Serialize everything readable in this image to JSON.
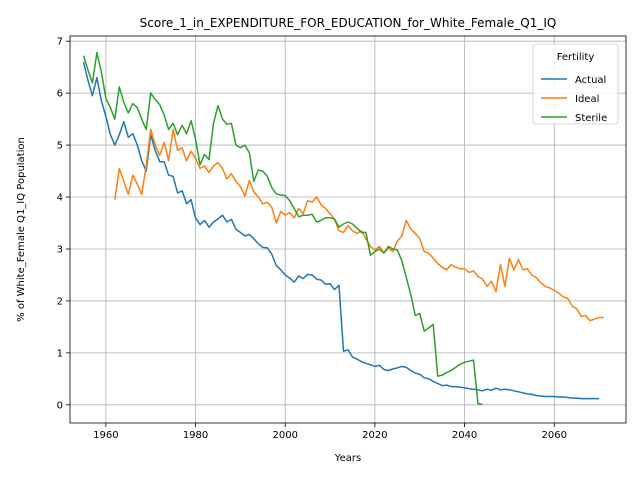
{
  "chart_data": {
    "type": "line",
    "title": "Score_1_in_EXPENDITURE_FOR_EDUCATION_for_White_Female_Q1_IQ",
    "xlabel": "Years",
    "ylabel": "% of White_Female Q1_IQ Population",
    "xlim": [
      1952,
      2076
    ],
    "ylim": [
      -0.35,
      7.1
    ],
    "xticks": [
      1960,
      1980,
      2000,
      2020,
      2040,
      2060
    ],
    "yticks": [
      0,
      1,
      2,
      3,
      4,
      5,
      6,
      7
    ],
    "grid": true,
    "legend": {
      "title": "Fertility",
      "placement": "top-right"
    },
    "series": [
      {
        "name": "Actual",
        "color": "#1f77b4",
        "points": [
          [
            1955,
            6.6
          ],
          [
            1956,
            6.25
          ],
          [
            1957,
            5.95
          ],
          [
            1958,
            6.3
          ],
          [
            1959,
            5.85
          ],
          [
            1960,
            5.55
          ],
          [
            1961,
            5.2
          ],
          [
            1962,
            5.0
          ],
          [
            1963,
            5.2
          ],
          [
            1964,
            5.45
          ],
          [
            1965,
            5.15
          ],
          [
            1966,
            5.22
          ],
          [
            1967,
            5.0
          ],
          [
            1968,
            4.7
          ],
          [
            1969,
            4.5
          ],
          [
            1970,
            5.2
          ],
          [
            1971,
            4.9
          ],
          [
            1972,
            4.68
          ],
          [
            1973,
            4.68
          ],
          [
            1974,
            4.42
          ],
          [
            1975,
            4.4
          ],
          [
            1976,
            4.08
          ],
          [
            1977,
            4.12
          ],
          [
            1978,
            3.87
          ],
          [
            1979,
            3.95
          ],
          [
            1980,
            3.6
          ],
          [
            1981,
            3.47
          ],
          [
            1982,
            3.55
          ],
          [
            1983,
            3.42
          ],
          [
            1984,
            3.52
          ],
          [
            1985,
            3.58
          ],
          [
            1986,
            3.65
          ],
          [
            1987,
            3.52
          ],
          [
            1988,
            3.57
          ],
          [
            1989,
            3.38
          ],
          [
            1990,
            3.32
          ],
          [
            1991,
            3.25
          ],
          [
            1992,
            3.28
          ],
          [
            1993,
            3.2
          ],
          [
            1994,
            3.1
          ],
          [
            1995,
            3.03
          ],
          [
            1996,
            3.02
          ],
          [
            1997,
            2.9
          ],
          [
            1998,
            2.68
          ],
          [
            1999,
            2.6
          ],
          [
            2000,
            2.5
          ],
          [
            2001,
            2.44
          ],
          [
            2002,
            2.36
          ],
          [
            2003,
            2.48
          ],
          [
            2004,
            2.43
          ],
          [
            2005,
            2.51
          ],
          [
            2006,
            2.5
          ],
          [
            2007,
            2.42
          ],
          [
            2008,
            2.4
          ],
          [
            2009,
            2.32
          ],
          [
            2010,
            2.33
          ],
          [
            2011,
            2.22
          ],
          [
            2012,
            2.3
          ],
          [
            2013,
            1.03
          ],
          [
            2014,
            1.06
          ],
          [
            2015,
            0.92
          ],
          [
            2016,
            0.88
          ],
          [
            2017,
            0.83
          ],
          [
            2018,
            0.8
          ],
          [
            2019,
            0.77
          ],
          [
            2020,
            0.74
          ],
          [
            2021,
            0.76
          ],
          [
            2022,
            0.68
          ],
          [
            2023,
            0.66
          ],
          [
            2024,
            0.69
          ],
          [
            2025,
            0.71
          ],
          [
            2026,
            0.74
          ],
          [
            2027,
            0.72
          ],
          [
            2028,
            0.66
          ],
          [
            2029,
            0.61
          ],
          [
            2030,
            0.59
          ],
          [
            2031,
            0.52
          ],
          [
            2032,
            0.5
          ],
          [
            2033,
            0.45
          ],
          [
            2034,
            0.41
          ],
          [
            2035,
            0.37
          ],
          [
            2036,
            0.38
          ],
          [
            2037,
            0.35
          ],
          [
            2038,
            0.35
          ],
          [
            2039,
            0.34
          ],
          [
            2040,
            0.33
          ],
          [
            2041,
            0.31
          ],
          [
            2042,
            0.3
          ],
          [
            2043,
            0.29
          ],
          [
            2044,
            0.27
          ],
          [
            2045,
            0.3
          ],
          [
            2046,
            0.28
          ],
          [
            2047,
            0.32
          ],
          [
            2048,
            0.29
          ],
          [
            2049,
            0.3
          ],
          [
            2050,
            0.29
          ],
          [
            2051,
            0.27
          ],
          [
            2052,
            0.25
          ],
          [
            2053,
            0.23
          ],
          [
            2054,
            0.21
          ],
          [
            2055,
            0.2
          ],
          [
            2056,
            0.18
          ],
          [
            2057,
            0.17
          ],
          [
            2058,
            0.16
          ],
          [
            2059,
            0.16
          ],
          [
            2060,
            0.16
          ],
          [
            2061,
            0.15
          ],
          [
            2062,
            0.15
          ],
          [
            2063,
            0.14
          ],
          [
            2064,
            0.13
          ],
          [
            2065,
            0.13
          ],
          [
            2066,
            0.12
          ],
          [
            2067,
            0.12
          ],
          [
            2068,
            0.12
          ],
          [
            2069,
            0.12
          ],
          [
            2070,
            0.12
          ]
        ]
      },
      {
        "name": "Ideal",
        "color": "#ff7f0e",
        "points": [
          [
            1962,
            3.95
          ],
          [
            1963,
            4.55
          ],
          [
            1964,
            4.3
          ],
          [
            1965,
            4.05
          ],
          [
            1966,
            4.42
          ],
          [
            1967,
            4.25
          ],
          [
            1968,
            4.05
          ],
          [
            1969,
            4.6
          ],
          [
            1970,
            5.3
          ],
          [
            1971,
            5.0
          ],
          [
            1972,
            4.8
          ],
          [
            1973,
            5.05
          ],
          [
            1974,
            4.7
          ],
          [
            1975,
            5.3
          ],
          [
            1976,
            4.9
          ],
          [
            1977,
            4.95
          ],
          [
            1978,
            4.7
          ],
          [
            1979,
            4.88
          ],
          [
            1980,
            4.75
          ],
          [
            1981,
            4.55
          ],
          [
            1982,
            4.6
          ],
          [
            1983,
            4.47
          ],
          [
            1984,
            4.6
          ],
          [
            1985,
            4.66
          ],
          [
            1986,
            4.55
          ],
          [
            1987,
            4.35
          ],
          [
            1988,
            4.45
          ],
          [
            1989,
            4.3
          ],
          [
            1990,
            4.2
          ],
          [
            1991,
            4.02
          ],
          [
            1992,
            4.32
          ],
          [
            1993,
            4.1
          ],
          [
            1994,
            4.0
          ],
          [
            1995,
            3.87
          ],
          [
            1996,
            3.9
          ],
          [
            1997,
            3.8
          ],
          [
            1998,
            3.5
          ],
          [
            1999,
            3.72
          ],
          [
            2000,
            3.65
          ],
          [
            2001,
            3.7
          ],
          [
            2002,
            3.6
          ],
          [
            2003,
            3.78
          ],
          [
            2004,
            3.68
          ],
          [
            2005,
            3.93
          ],
          [
            2006,
            3.9
          ],
          [
            2007,
            4.0
          ],
          [
            2008,
            3.85
          ],
          [
            2009,
            3.78
          ],
          [
            2010,
            3.68
          ],
          [
            2011,
            3.57
          ],
          [
            2012,
            3.35
          ],
          [
            2013,
            3.32
          ],
          [
            2014,
            3.45
          ],
          [
            2015,
            3.35
          ],
          [
            2016,
            3.3
          ],
          [
            2017,
            3.35
          ],
          [
            2018,
            3.2
          ],
          [
            2019,
            3.05
          ],
          [
            2020,
            2.98
          ],
          [
            2021,
            3.05
          ],
          [
            2022,
            2.92
          ],
          [
            2023,
            3.02
          ],
          [
            2024,
            2.95
          ],
          [
            2025,
            3.15
          ],
          [
            2026,
            3.25
          ],
          [
            2027,
            3.55
          ],
          [
            2028,
            3.38
          ],
          [
            2029,
            3.3
          ],
          [
            2030,
            3.2
          ],
          [
            2031,
            2.95
          ],
          [
            2032,
            2.92
          ],
          [
            2033,
            2.82
          ],
          [
            2034,
            2.72
          ],
          [
            2035,
            2.65
          ],
          [
            2036,
            2.6
          ],
          [
            2037,
            2.7
          ],
          [
            2038,
            2.65
          ],
          [
            2039,
            2.62
          ],
          [
            2040,
            2.62
          ],
          [
            2041,
            2.55
          ],
          [
            2042,
            2.58
          ],
          [
            2043,
            2.47
          ],
          [
            2044,
            2.42
          ],
          [
            2045,
            2.28
          ],
          [
            2046,
            2.38
          ],
          [
            2047,
            2.18
          ],
          [
            2048,
            2.7
          ],
          [
            2049,
            2.28
          ],
          [
            2050,
            2.82
          ],
          [
            2051,
            2.6
          ],
          [
            2052,
            2.8
          ],
          [
            2053,
            2.6
          ],
          [
            2054,
            2.62
          ],
          [
            2055,
            2.5
          ],
          [
            2056,
            2.45
          ],
          [
            2057,
            2.35
          ],
          [
            2058,
            2.28
          ],
          [
            2059,
            2.25
          ],
          [
            2060,
            2.2
          ],
          [
            2061,
            2.15
          ],
          [
            2062,
            2.08
          ],
          [
            2063,
            2.05
          ],
          [
            2064,
            1.9
          ],
          [
            2065,
            1.85
          ],
          [
            2066,
            1.7
          ],
          [
            2067,
            1.72
          ],
          [
            2068,
            1.62
          ],
          [
            2069,
            1.65
          ],
          [
            2070,
            1.68
          ],
          [
            2071,
            1.68
          ]
        ]
      },
      {
        "name": "Sterile",
        "color": "#2ca02c",
        "points": [
          [
            1955,
            6.72
          ],
          [
            1956,
            6.45
          ],
          [
            1957,
            6.2
          ],
          [
            1958,
            6.78
          ],
          [
            1959,
            6.4
          ],
          [
            1960,
            5.9
          ],
          [
            1961,
            5.72
          ],
          [
            1962,
            5.5
          ],
          [
            1963,
            6.12
          ],
          [
            1964,
            5.82
          ],
          [
            1965,
            5.62
          ],
          [
            1966,
            5.8
          ],
          [
            1967,
            5.72
          ],
          [
            1968,
            5.5
          ],
          [
            1969,
            5.3
          ],
          [
            1970,
            6.0
          ],
          [
            1971,
            5.88
          ],
          [
            1972,
            5.78
          ],
          [
            1973,
            5.58
          ],
          [
            1974,
            5.3
          ],
          [
            1975,
            5.42
          ],
          [
            1976,
            5.2
          ],
          [
            1977,
            5.38
          ],
          [
            1978,
            5.22
          ],
          [
            1979,
            5.47
          ],
          [
            1980,
            5.12
          ],
          [
            1981,
            4.62
          ],
          [
            1982,
            4.82
          ],
          [
            1983,
            4.72
          ],
          [
            1984,
            5.42
          ],
          [
            1985,
            5.76
          ],
          [
            1986,
            5.5
          ],
          [
            1987,
            5.4
          ],
          [
            1988,
            5.42
          ],
          [
            1989,
            5.0
          ],
          [
            1990,
            4.95
          ],
          [
            1991,
            5.0
          ],
          [
            1992,
            4.85
          ],
          [
            1993,
            4.3
          ],
          [
            1994,
            4.52
          ],
          [
            1995,
            4.5
          ],
          [
            1996,
            4.4
          ],
          [
            1997,
            4.18
          ],
          [
            1998,
            4.06
          ],
          [
            1999,
            4.04
          ],
          [
            2000,
            4.03
          ],
          [
            2001,
            3.93
          ],
          [
            2002,
            3.78
          ],
          [
            2003,
            3.62
          ],
          [
            2004,
            3.65
          ],
          [
            2005,
            3.65
          ],
          [
            2006,
            3.67
          ],
          [
            2007,
            3.52
          ],
          [
            2008,
            3.55
          ],
          [
            2009,
            3.6
          ],
          [
            2010,
            3.6
          ],
          [
            2011,
            3.58
          ],
          [
            2012,
            3.42
          ],
          [
            2013,
            3.48
          ],
          [
            2014,
            3.52
          ],
          [
            2015,
            3.48
          ],
          [
            2016,
            3.4
          ],
          [
            2017,
            3.32
          ],
          [
            2018,
            3.32
          ],
          [
            2019,
            2.88
          ],
          [
            2020,
            2.95
          ],
          [
            2021,
            3.0
          ],
          [
            2022,
            2.92
          ],
          [
            2023,
            3.05
          ],
          [
            2024,
            3.0
          ],
          [
            2025,
            2.98
          ],
          [
            2026,
            2.78
          ],
          [
            2027,
            2.45
          ],
          [
            2028,
            2.12
          ],
          [
            2029,
            1.72
          ],
          [
            2030,
            1.76
          ],
          [
            2031,
            1.42
          ],
          [
            2032,
            1.48
          ],
          [
            2033,
            1.55
          ],
          [
            2034,
            0.55
          ],
          [
            2035,
            0.57
          ],
          [
            2036,
            0.62
          ],
          [
            2037,
            0.66
          ],
          [
            2038,
            0.72
          ],
          [
            2039,
            0.78
          ],
          [
            2040,
            0.82
          ],
          [
            2041,
            0.84
          ],
          [
            2042,
            0.86
          ],
          [
            2043,
            0.02
          ],
          [
            2044,
            0.01
          ]
        ]
      }
    ]
  }
}
